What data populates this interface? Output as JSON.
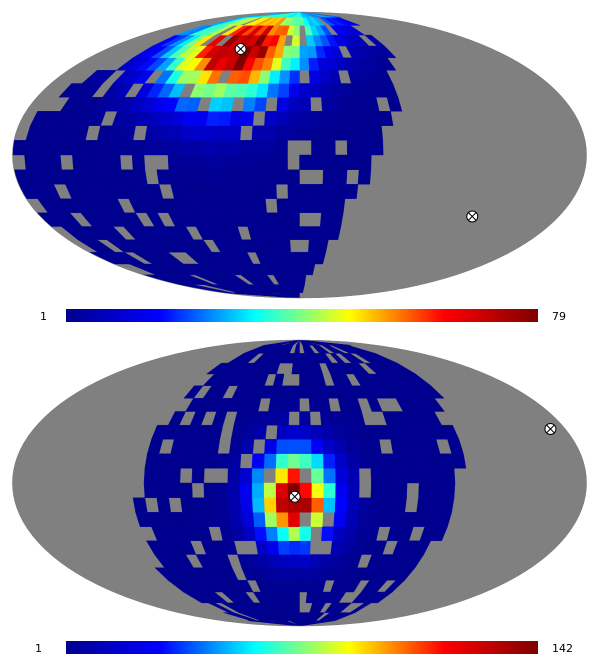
{
  "chart_data": [
    {
      "type": "heatmap",
      "projection": "mollweide",
      "colormap": "jet",
      "colormap_stops": [
        "#00008f",
        "#0000ff",
        "#00ffff",
        "#ffff00",
        "#ff0000",
        "#800000"
      ],
      "missing_color": "#808080",
      "colorbar": {
        "min": 1,
        "max": 79,
        "min_label": "1",
        "max_label": "79"
      },
      "peak": {
        "lon": 55,
        "lat": 58,
        "value": 79
      },
      "spread_deg": 22,
      "coverage": {
        "lon_min": -50,
        "lon_max": 180,
        "tilt": 0.55
      },
      "markers": [
        {
          "symbol": "circle-x",
          "lon": 55,
          "lat": 58
        },
        {
          "symbol": "circle-x",
          "lon": -120,
          "lat": -32
        }
      ]
    },
    {
      "type": "heatmap",
      "projection": "mollweide",
      "colormap": "jet",
      "colormap_stops": [
        "#00008f",
        "#0000ff",
        "#00ffff",
        "#ffff00",
        "#ff0000",
        "#800000"
      ],
      "missing_color": "#808080",
      "colorbar": {
        "min": 1,
        "max": 142,
        "min_label": "1",
        "max_label": "142"
      },
      "peak": {
        "lon": 3,
        "lat": -7,
        "value": 142
      },
      "spread_deg": 16,
      "coverage": {
        "lon_min": -100,
        "lon_max": 100,
        "tilt": 0.2
      },
      "markers": [
        {
          "symbol": "circle-x",
          "lon": 3,
          "lat": -7
        },
        {
          "symbol": "circle-x",
          "lon": -170,
          "lat": 28
        }
      ]
    }
  ]
}
